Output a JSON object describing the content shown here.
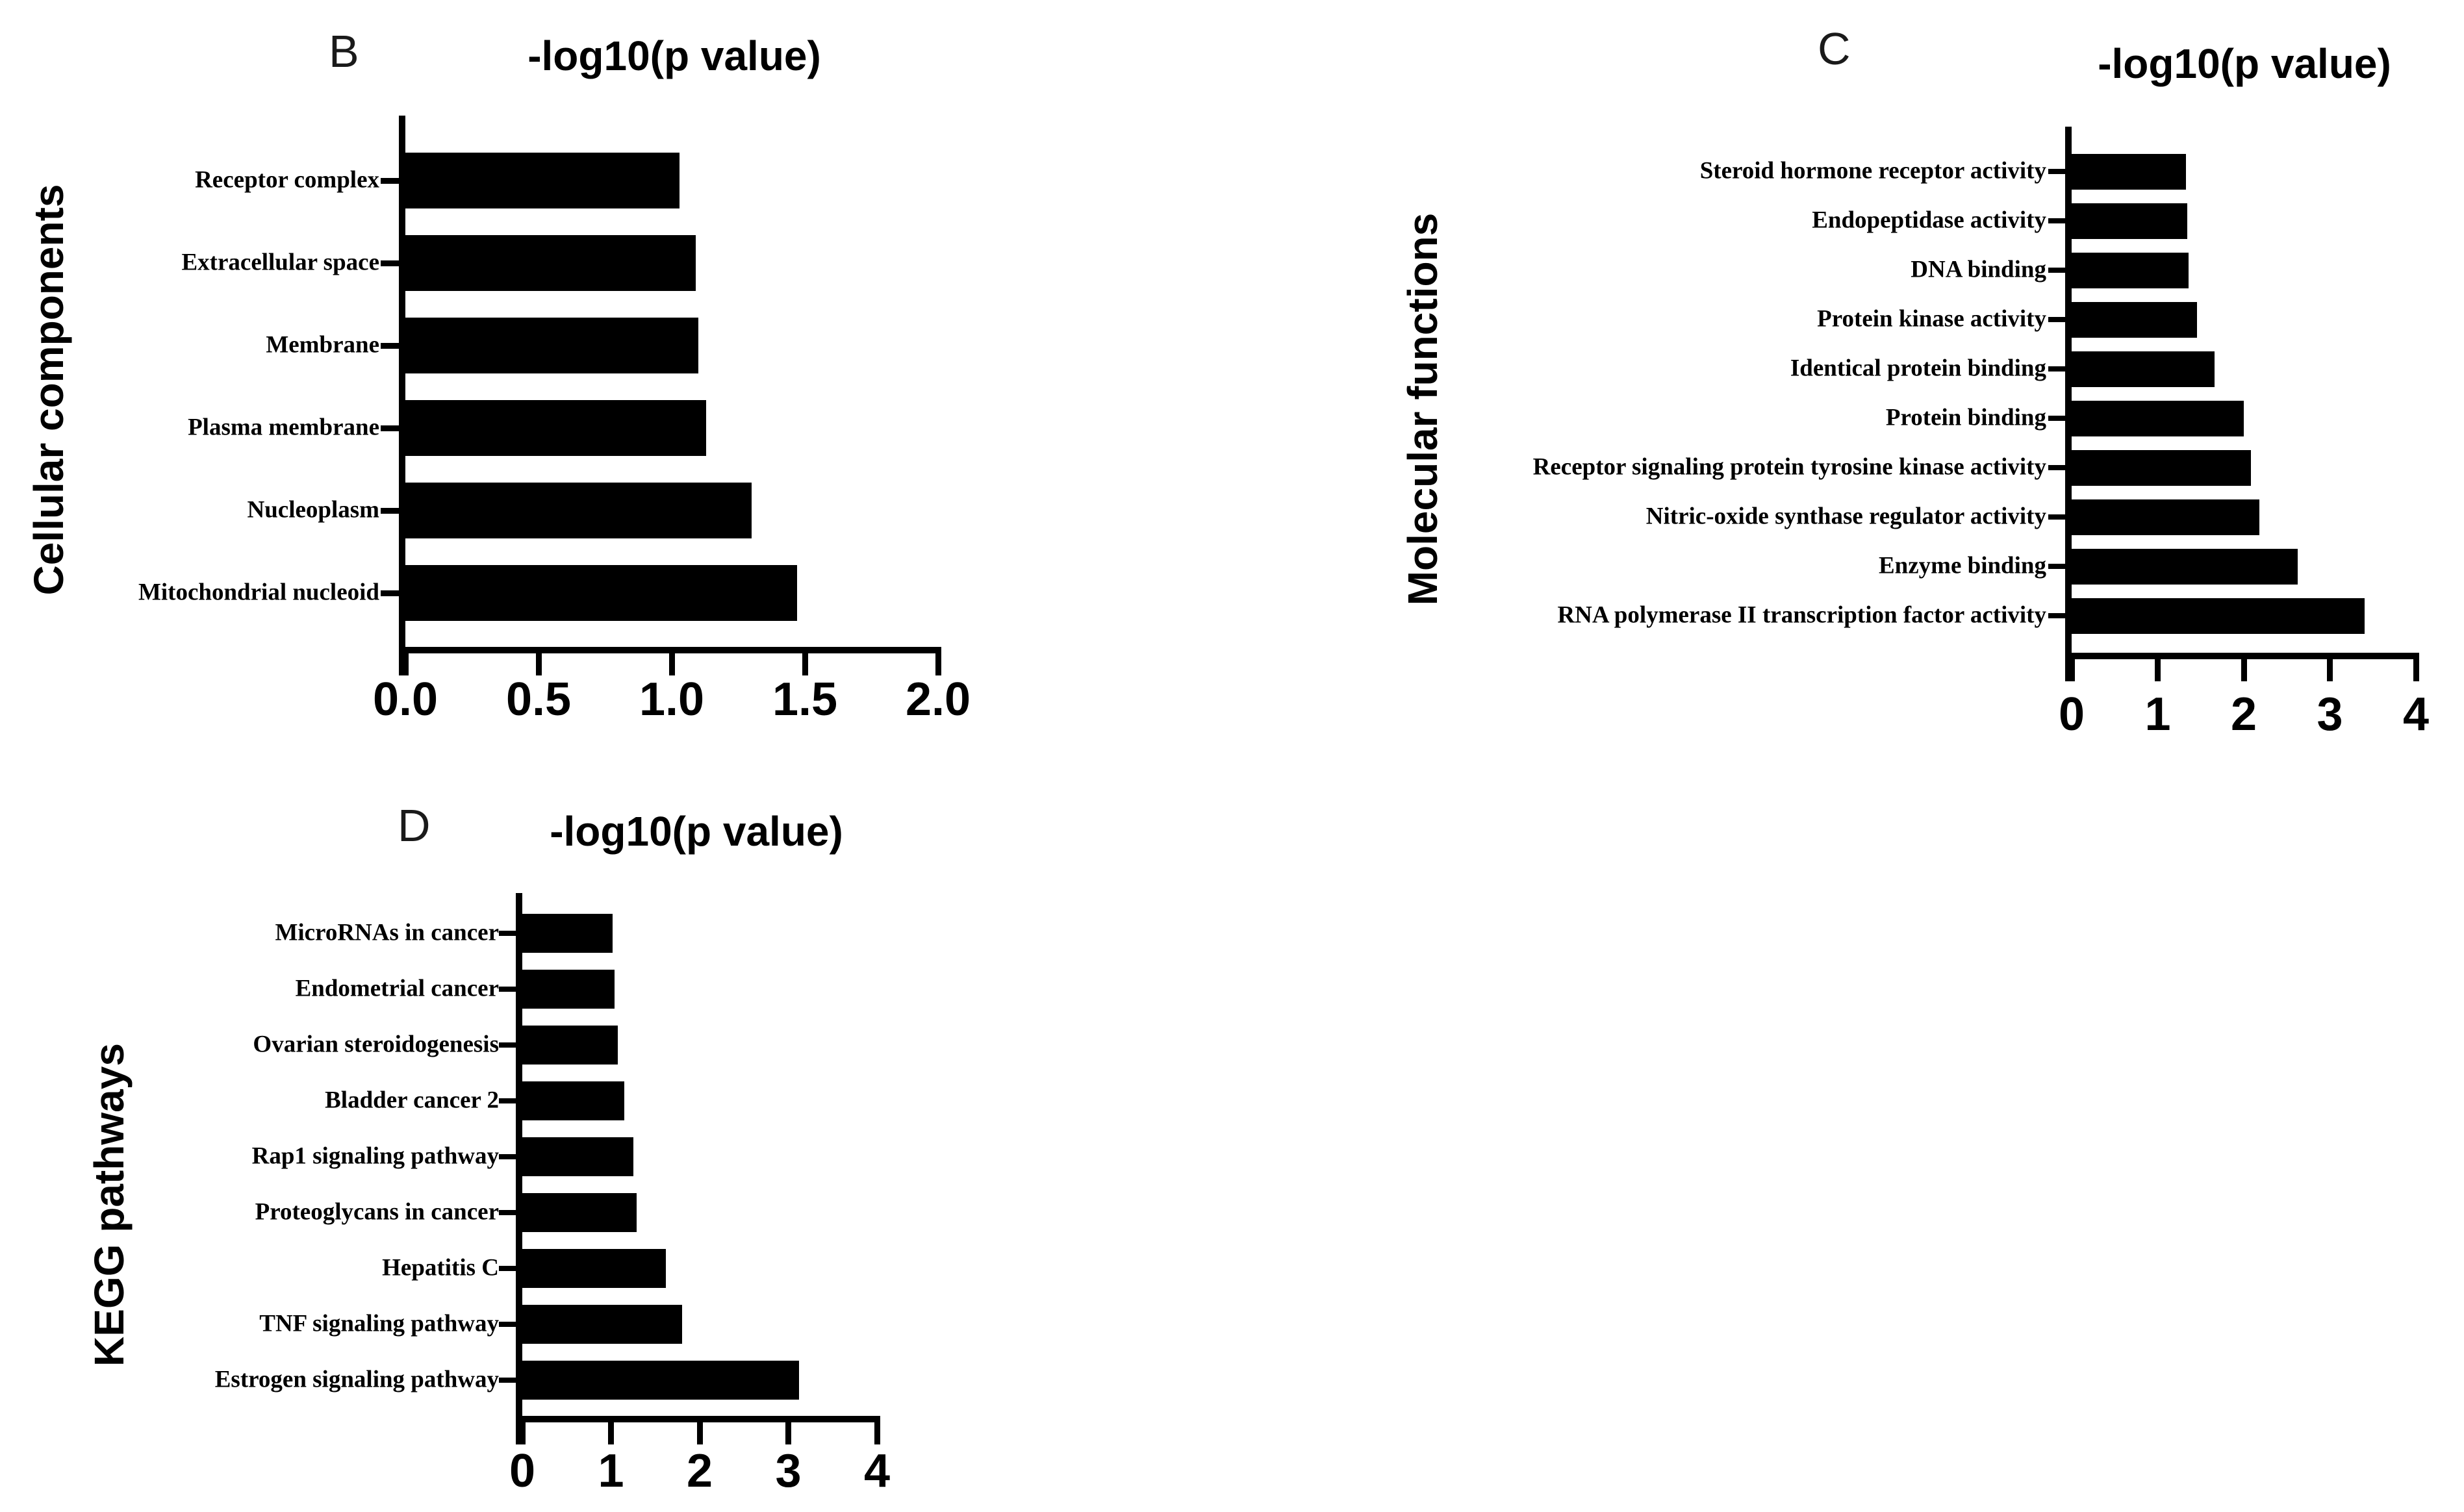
{
  "chart_data": [
    {
      "panel_letter": "B",
      "type": "bar",
      "orientation": "horizontal",
      "title": "-log10(p value)",
      "ylabel": "Cellular components",
      "categories": [
        "Receptor complex",
        "Extracellular space",
        "Membrane",
        "Plasma membrane",
        "Nucleoplasm",
        "Mitochondrial nucleoid"
      ],
      "values": [
        1.03,
        1.09,
        1.1,
        1.13,
        1.3,
        1.47
      ],
      "xlim": [
        0,
        2
      ],
      "xticks": [
        0,
        0.5,
        1,
        1.5,
        2
      ],
      "xtick_labels": [
        "0.0",
        "0.5",
        "1.0",
        "1.5",
        "2.0"
      ],
      "bar_color": "#000000",
      "grid": false,
      "legend": "none"
    },
    {
      "panel_letter": "C",
      "type": "bar",
      "orientation": "horizontal",
      "title": "-log10(p value)",
      "ylabel": "Molecular functions",
      "categories": [
        "Steroid hormone receptor activity",
        "Endopeptidase activity",
        "DNA binding",
        "Protein kinase activity",
        "Identical protein binding",
        "Protein binding",
        "Receptor signaling protein tyrosine kinase activity",
        "Nitric-oxide synthase regulator activity",
        "Enzyme binding",
        "RNA polymerase II transcription factor activity"
      ],
      "values": [
        1.33,
        1.34,
        1.36,
        1.46,
        1.66,
        2.0,
        2.08,
        2.18,
        2.63,
        3.4
      ],
      "xlim": [
        0,
        4
      ],
      "xticks": [
        0,
        1,
        2,
        3,
        4
      ],
      "xtick_labels": [
        "0",
        "1",
        "2",
        "3",
        "4"
      ],
      "bar_color": "#000000",
      "grid": false,
      "legend": "none"
    },
    {
      "panel_letter": "D",
      "type": "bar",
      "orientation": "horizontal",
      "title": "-log10(p value)",
      "ylabel": "KEGG pathways",
      "categories": [
        "MicroRNAs in cancer",
        "Endometrial cancer",
        "Ovarian steroidogenesis",
        "Bladder cancer 2",
        "Rap1 signaling pathway",
        "Proteoglycans in cancer",
        "Hepatitis C",
        "TNF signaling pathway",
        "Estrogen signaling pathway"
      ],
      "values": [
        1.02,
        1.04,
        1.08,
        1.15,
        1.25,
        1.29,
        1.62,
        1.8,
        3.12
      ],
      "xlim": [
        0,
        4
      ],
      "xticks": [
        0,
        1,
        2,
        3,
        4
      ],
      "xtick_labels": [
        "0",
        "1",
        "2",
        "3",
        "4"
      ],
      "bar_color": "#000000",
      "grid": false,
      "legend": "none"
    }
  ]
}
